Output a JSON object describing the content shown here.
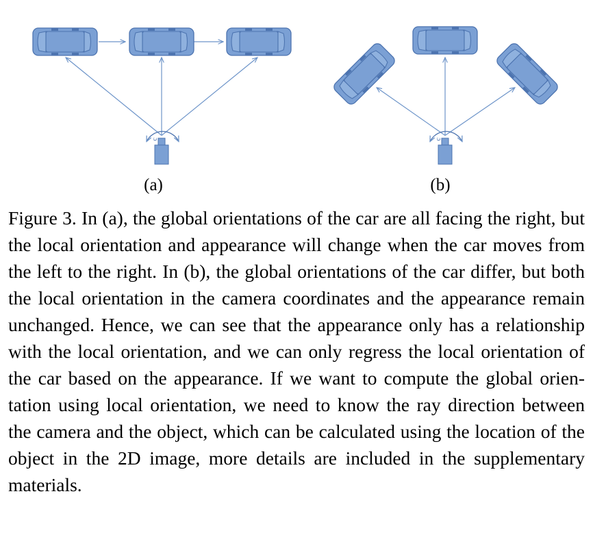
{
  "figure": {
    "panels": [
      {
        "label": "(a)"
      },
      {
        "label": "(b)"
      }
    ],
    "camera_label": "c",
    "colors": {
      "car_fill": "#7ba0d4",
      "car_stroke": "#4d74b0",
      "car_window": "#8fb1de",
      "ray": "#6d94c9",
      "camera_fill": "#7ba0d4"
    },
    "icons": [
      "car-icon",
      "camera-icon",
      "arc-arrow-icon"
    ]
  },
  "caption": {
    "label": "Figure 3.",
    "text": "In (a), the global orientations of the car are all facing the right, but the local orientation and appearance will change when the car moves from the left to the right. In (b), the global orienta­tions of the car differ, but both the local orientation in the camera coordinates and the appearance remain unchanged. Hence, we can see that the appearance only has a relationship with the local ori­entation, and we can only regress the local orientation of the car based on the appearance. If we want to compute the global orien­tation using local orientation, we need to know the ray direction between the camera and the object, which can be calculated us­ing the location of the object in the 2D image, more details are included in the supplementary materials."
  }
}
